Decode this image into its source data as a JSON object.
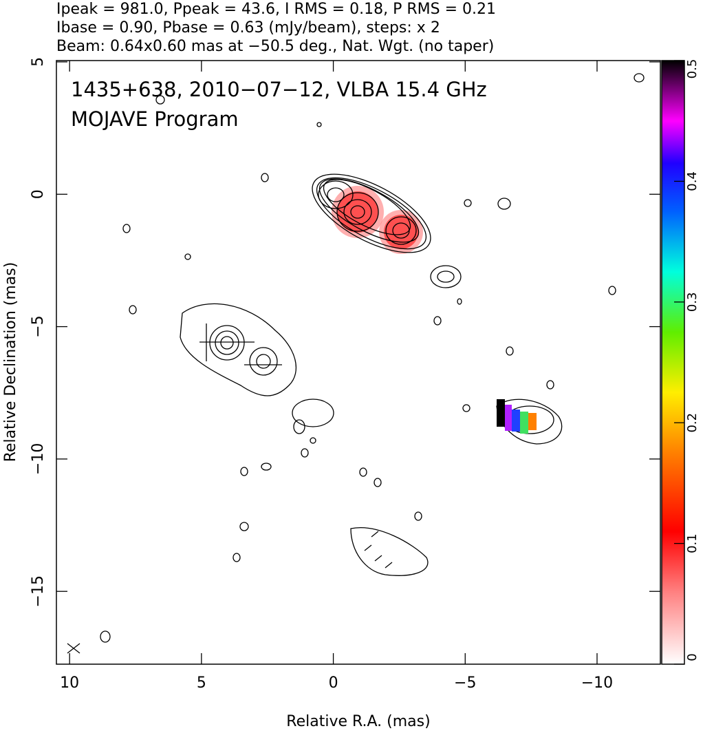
{
  "chart_data": {
    "type": "contour",
    "header": [
      "Ipeak = 981.0, Ppeak = 43.6, I RMS = 0.18, P RMS = 0.21",
      "Ibase = 0.90, Pbase = 0.63 (mJy/beam), steps: x 2",
      "Beam: 0.64x0.60 mas at −50.5 deg., Nat. Wgt. (no taper)"
    ],
    "title": [
      "1435+638, 2010−07−12, VLBA 15.4 GHz",
      "MOJAVE Program"
    ],
    "x_label": "Relative R.A. (mas)",
    "y_label": "Relative Declination (mas)",
    "xlim": [
      10.5,
      -12.4
    ],
    "ylim": [
      -17.75,
      5.05
    ],
    "xticks": [
      10,
      5,
      0,
      {
        "value": -5,
        "label": "−5"
      },
      {
        "value": -10,
        "label": "−10"
      }
    ],
    "yticks": [
      5,
      0,
      {
        "value": -5,
        "label": "−5"
      },
      {
        "value": -10,
        "label": "−10"
      },
      {
        "value": -15,
        "label": "−15"
      }
    ],
    "colorbar_lim": [
      0,
      0.5
    ],
    "colorbar_ticks": [
      0,
      0.1,
      0.2,
      0.3,
      0.4,
      0.5
    ]
  }
}
